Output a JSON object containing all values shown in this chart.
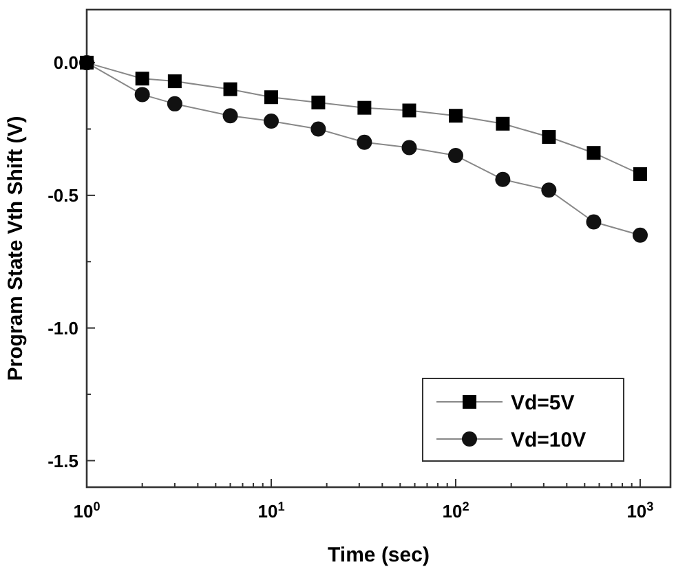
{
  "chart_data": {
    "type": "line",
    "xlabel": "Time (sec)",
    "ylabel": "Program State Vth Shift (V)",
    "log": "x",
    "xlim": [
      1,
      1460
    ],
    "ylim": [
      -1.6,
      0.2
    ],
    "xticks": [
      {
        "value": 1,
        "label": "10$^{0}$"
      },
      {
        "value": 10,
        "label": "10$^{1}$"
      },
      {
        "value": 100,
        "label": "10$^{2}$"
      },
      {
        "value": 1000,
        "label": "10$^{3}$"
      }
    ],
    "yticks": [
      {
        "value": -1.5,
        "label": "-1.5"
      },
      {
        "value": -1.25,
        "label": null
      },
      {
        "value": -1,
        "label": "-1.0"
      },
      {
        "value": -0.75,
        "label": null
      },
      {
        "value": -0.5,
        "label": "-0.5"
      },
      {
        "value": -0.25,
        "label": null
      },
      {
        "value": 0,
        "label": "0.0"
      }
    ],
    "x": [
      1,
      2,
      3,
      6,
      10,
      18,
      32,
      56,
      100,
      180,
      320,
      560,
      1000
    ],
    "series": [
      {
        "name": "Vd=5V",
        "color": "#000000",
        "marker": "square",
        "values": [
          0,
          -0.06,
          -0.07,
          -0.1,
          -0.13,
          -0.15,
          -0.17,
          -0.18,
          -0.2,
          -0.23,
          -0.28,
          -0.34,
          -0.42
        ]
      },
      {
        "name": "Vd=10V",
        "color": "#111111",
        "marker": "circle",
        "values": [
          0,
          -0.12,
          -0.155,
          -0.2,
          -0.22,
          -0.25,
          -0.3,
          -0.32,
          -0.35,
          -0.44,
          -0.48,
          -0.6,
          -0.65
        ]
      }
    ],
    "legend": "bottom right",
    "grid": false,
    "line_style": "solid"
  }
}
